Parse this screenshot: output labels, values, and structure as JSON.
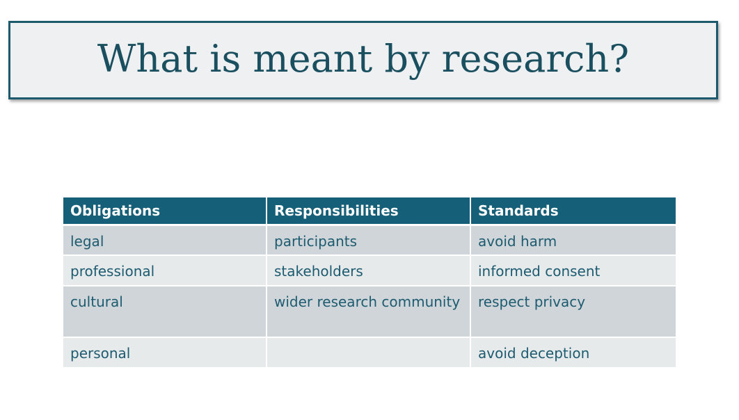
{
  "slide": {
    "title": "What is meant by research?"
  },
  "table": {
    "headers": [
      "Obligations",
      "Responsibilities",
      "Standards"
    ],
    "rows": [
      [
        "legal",
        "participants",
        "avoid harm"
      ],
      [
        "professional",
        "stakeholders",
        "informed consent"
      ],
      [
        "cultural",
        "wider research community",
        "respect privacy"
      ],
      [
        "personal",
        "",
        "avoid deception"
      ]
    ]
  },
  "colors": {
    "title_text": "#1a4f60",
    "title_border": "#1e5a6e",
    "header_bg": "#155f78",
    "row_dark": "#cfd5d8",
    "row_light": "#e6eaeb"
  }
}
